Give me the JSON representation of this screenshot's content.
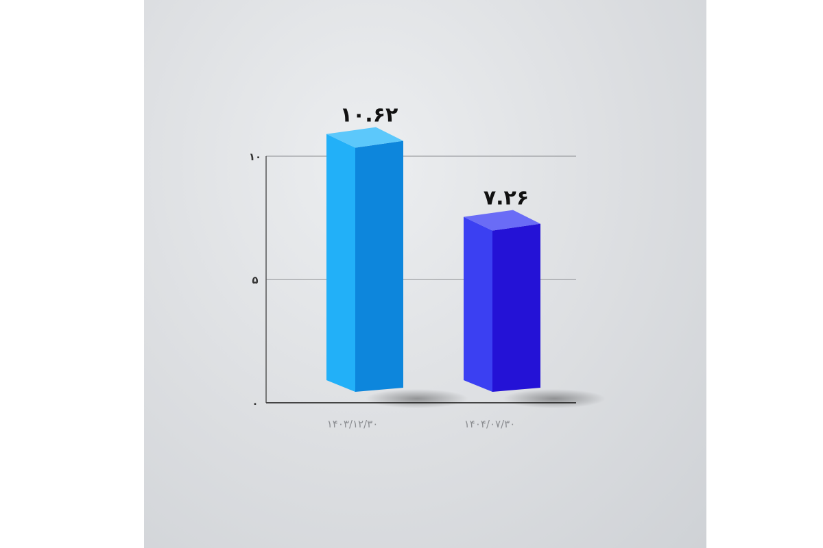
{
  "chart_data": {
    "type": "bar",
    "categories": [
      "۱۴۰۳/۱۲/۳۰",
      "۱۴۰۴/۰۷/۳۰"
    ],
    "values": [
      10.62,
      7.26
    ],
    "value_labels": [
      "۱۰.۶۲",
      "۷.۲۶"
    ],
    "ylim": [
      0,
      10
    ],
    "yticks": [
      0,
      5,
      10
    ],
    "ytick_labels": [
      "۰",
      "۵",
      "۱۰"
    ],
    "grid": true,
    "style": "3d-column",
    "colors": [
      {
        "left": "#22b0f8",
        "right": "#0d86dc",
        "top": "#5cc8fb"
      },
      {
        "left": "#3b40f2",
        "right": "#2412d6",
        "top": "#6a6cf6"
      }
    ]
  }
}
